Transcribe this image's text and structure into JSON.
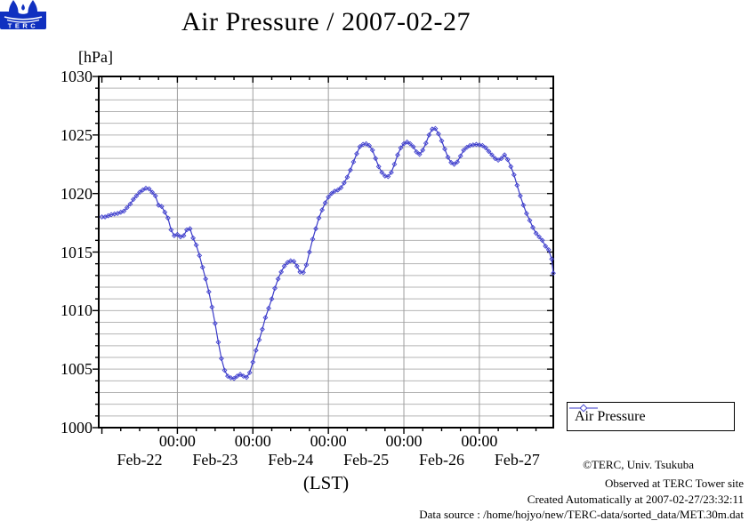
{
  "title": {
    "text": "Air Pressure / 2007-02-27"
  },
  "y_axis": {
    "unit_label": "[hPa]",
    "tick_labels": [
      "1000",
      "1005",
      "1010",
      "1015",
      "1020",
      "1025",
      "1030"
    ],
    "major_step_hpa": 5,
    "minor_step_hpa": 1
  },
  "x_axis": {
    "label": "(LST)",
    "midnight_tick_label": "00:00",
    "midnight_label_hours": [
      24,
      48,
      72,
      96,
      120
    ],
    "day_labels": [
      "Feb-22",
      "Feb-23",
      "Feb-24",
      "Feb-25",
      "Feb-26",
      "Feb-27"
    ],
    "day_label_hours": [
      12,
      36,
      60,
      84,
      108,
      132
    ],
    "minor_tick_step_hours": 6,
    "major_tick_step_hours": 24
  },
  "legend": {
    "label": "Air Pressure",
    "marker": "diamond"
  },
  "annotations": {
    "copyright": "©TERC, Univ. Tsukuba",
    "observed": "Observed at TERC Tower site",
    "created": "Created Automatically at 2007-02-27/23:32:11",
    "datasource": "Data source : /home/hojyo/new/TERC-data/sorted_data/MET.30m.dat",
    "logo_text": "TERC"
  },
  "colors": {
    "line": "#3a3ac8",
    "marker": "#4545d0",
    "grid_minor": "#b4b4b4",
    "grid_major": "#9e9e9e",
    "frame": "#000000",
    "logo_blue": "#1030c0"
  },
  "chart_data": {
    "type": "line",
    "title": "Air Pressure / 2007-02-27",
    "xlabel": "(LST)",
    "ylabel": "[hPa]",
    "x_unit": "hours since 2007-02-22 00:00 LST",
    "x_domain_hours": [
      -1,
      143.5
    ],
    "ylim": [
      1000,
      1030
    ],
    "grid": true,
    "legend_position": "outside-bottom-right",
    "series": [
      {
        "name": "Air Pressure",
        "points": [
          [
            0,
            1018.0
          ],
          [
            1,
            1018.0
          ],
          [
            2,
            1018.1
          ],
          [
            3,
            1018.2
          ],
          [
            4,
            1018.25
          ],
          [
            5,
            1018.3
          ],
          [
            6,
            1018.4
          ],
          [
            7,
            1018.5
          ],
          [
            8,
            1018.8
          ],
          [
            9,
            1019.1
          ],
          [
            10,
            1019.5
          ],
          [
            11,
            1019.8
          ],
          [
            12,
            1020.1
          ],
          [
            13,
            1020.3
          ],
          [
            14,
            1020.45
          ],
          [
            15,
            1020.4
          ],
          [
            16,
            1020.1
          ],
          [
            17,
            1019.8
          ],
          [
            18,
            1019.0
          ],
          [
            19,
            1018.9
          ],
          [
            20,
            1018.4
          ],
          [
            21,
            1017.9
          ],
          [
            22,
            1016.9
          ],
          [
            23,
            1016.4
          ],
          [
            24,
            1016.5
          ],
          [
            25,
            1016.3
          ],
          [
            26,
            1016.4
          ],
          [
            27,
            1016.9
          ],
          [
            28,
            1017.0
          ],
          [
            29,
            1016.2
          ],
          [
            30,
            1015.6
          ],
          [
            31,
            1014.7
          ],
          [
            32,
            1013.7
          ],
          [
            33,
            1012.7
          ],
          [
            34,
            1011.6
          ],
          [
            35,
            1010.3
          ],
          [
            36,
            1008.9
          ],
          [
            37,
            1007.3
          ],
          [
            38,
            1005.9
          ],
          [
            39,
            1004.9
          ],
          [
            40,
            1004.4
          ],
          [
            41,
            1004.25
          ],
          [
            42,
            1004.2
          ],
          [
            43,
            1004.4
          ],
          [
            44,
            1004.55
          ],
          [
            45,
            1004.4
          ],
          [
            46,
            1004.3
          ],
          [
            47,
            1004.7
          ],
          [
            48,
            1005.6
          ],
          [
            49,
            1006.6
          ],
          [
            50,
            1007.5
          ],
          [
            51,
            1008.4
          ],
          [
            52,
            1009.4
          ],
          [
            53,
            1010.2
          ],
          [
            54,
            1011.0
          ],
          [
            55,
            1011.9
          ],
          [
            56,
            1012.7
          ],
          [
            57,
            1013.3
          ],
          [
            58,
            1013.8
          ],
          [
            59,
            1014.1
          ],
          [
            60,
            1014.25
          ],
          [
            61,
            1014.2
          ],
          [
            62,
            1013.8
          ],
          [
            63,
            1013.3
          ],
          [
            64,
            1013.25
          ],
          [
            65,
            1013.9
          ],
          [
            66,
            1015.0
          ],
          [
            67,
            1016.1
          ],
          [
            68,
            1017.0
          ],
          [
            69,
            1017.9
          ],
          [
            70,
            1018.6
          ],
          [
            71,
            1019.2
          ],
          [
            72,
            1019.7
          ],
          [
            73,
            1020.0
          ],
          [
            74,
            1020.2
          ],
          [
            75,
            1020.3
          ],
          [
            76,
            1020.5
          ],
          [
            77,
            1020.9
          ],
          [
            78,
            1021.4
          ],
          [
            79,
            1022.0
          ],
          [
            80,
            1022.7
          ],
          [
            81,
            1023.4
          ],
          [
            82,
            1024.0
          ],
          [
            83,
            1024.2
          ],
          [
            84,
            1024.25
          ],
          [
            85,
            1024.1
          ],
          [
            86,
            1023.7
          ],
          [
            87,
            1023.0
          ],
          [
            88,
            1022.3
          ],
          [
            89,
            1021.8
          ],
          [
            90,
            1021.5
          ],
          [
            91,
            1021.45
          ],
          [
            92,
            1021.8
          ],
          [
            93,
            1022.5
          ],
          [
            94,
            1023.3
          ],
          [
            95,
            1023.9
          ],
          [
            96,
            1024.25
          ],
          [
            97,
            1024.4
          ],
          [
            98,
            1024.25
          ],
          [
            99,
            1024.0
          ],
          [
            100,
            1023.55
          ],
          [
            101,
            1023.35
          ],
          [
            102,
            1023.7
          ],
          [
            103,
            1024.3
          ],
          [
            104,
            1025.0
          ],
          [
            105,
            1025.5
          ],
          [
            106,
            1025.55
          ],
          [
            107,
            1025.1
          ],
          [
            108,
            1024.5
          ],
          [
            109,
            1023.8
          ],
          [
            110,
            1023.1
          ],
          [
            111,
            1022.65
          ],
          [
            112,
            1022.5
          ],
          [
            113,
            1022.7
          ],
          [
            114,
            1023.2
          ],
          [
            115,
            1023.7
          ],
          [
            116,
            1023.95
          ],
          [
            117,
            1024.1
          ],
          [
            118,
            1024.15
          ],
          [
            119,
            1024.2
          ],
          [
            120,
            1024.15
          ],
          [
            121,
            1024.1
          ],
          [
            122,
            1023.9
          ],
          [
            123,
            1023.6
          ],
          [
            124,
            1023.3
          ],
          [
            125,
            1023.0
          ],
          [
            126,
            1022.85
          ],
          [
            127,
            1023.0
          ],
          [
            128,
            1023.3
          ],
          [
            129,
            1022.9
          ],
          [
            130,
            1022.3
          ],
          [
            131,
            1021.6
          ],
          [
            132,
            1020.7
          ],
          [
            133,
            1019.8
          ],
          [
            134,
            1019.0
          ],
          [
            135,
            1018.3
          ],
          [
            136,
            1017.7
          ],
          [
            137,
            1017.1
          ],
          [
            138,
            1016.6
          ],
          [
            139,
            1016.3
          ],
          [
            140,
            1016.0
          ],
          [
            141,
            1015.5
          ],
          [
            142,
            1015.2
          ],
          [
            143,
            1014.4
          ],
          [
            143.5,
            1013.2
          ]
        ]
      }
    ]
  }
}
